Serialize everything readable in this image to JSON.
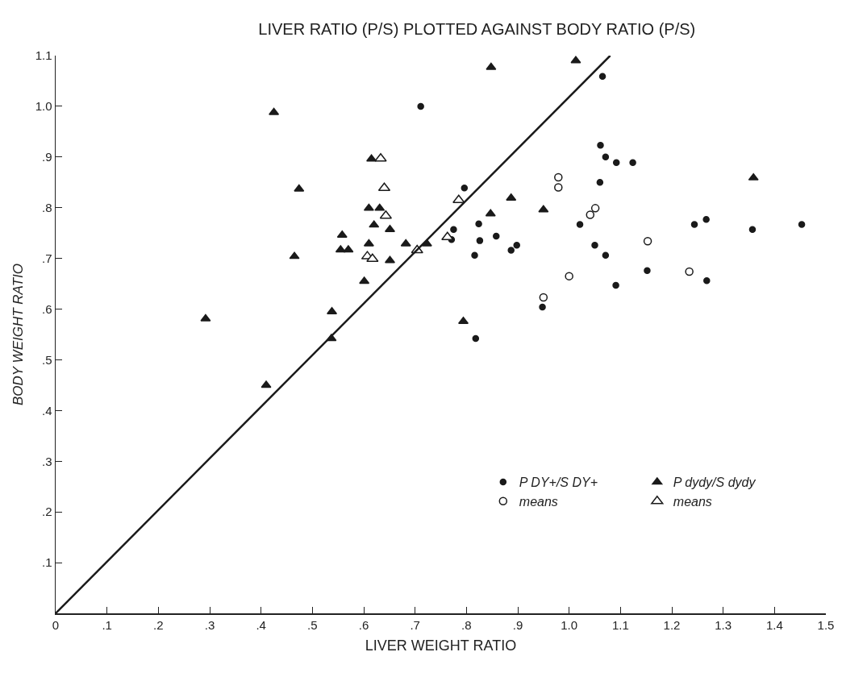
{
  "chart_data": {
    "type": "scatter",
    "title": "LIVER RATIO (P/S) PLOTTED AGAINST BODY RATIO (P/S)",
    "xlabel": "LIVER WEIGHT RATIO",
    "ylabel": "BODY WEIGHT RATIO",
    "xlim": [
      0,
      1.5
    ],
    "xticks": [
      0,
      {
        "value": 0.1,
        "label": ".1"
      },
      {
        "value": 0.2,
        "label": ".2"
      },
      {
        "value": 0.3,
        "label": ".3"
      },
      {
        "value": 0.4,
        "label": ".4"
      },
      {
        "value": 0.5,
        "label": ".5"
      },
      {
        "value": 0.6,
        "label": ".6"
      },
      {
        "value": 0.7,
        "label": ".7"
      },
      {
        "value": 0.8,
        "label": ".8"
      },
      {
        "value": 0.9,
        "label": ".9"
      },
      {
        "value": 1.0,
        "label": "1.0"
      },
      1.1,
      1.2,
      1.3,
      1.4,
      1.5
    ],
    "ylim": [
      0,
      1.1
    ],
    "yticks": [
      {
        "value": 0,
        "label": null
      },
      {
        "value": 0.1,
        "label": ".1"
      },
      {
        "value": 0.2,
        "label": ".2"
      },
      {
        "value": 0.3,
        "label": ".3"
      },
      {
        "value": 0.4,
        "label": ".4"
      },
      {
        "value": 0.5,
        "label": ".5"
      },
      {
        "value": 0.6,
        "label": ".6"
      },
      {
        "value": 0.7,
        "label": ".7"
      },
      {
        "value": 0.8,
        "label": ".8"
      },
      {
        "value": 0.9,
        "label": ".9"
      },
      {
        "value": 1.0,
        "label": "1.0"
      },
      1.1
    ],
    "grid": false,
    "legend": "bottom right",
    "series": [
      {
        "name": "P DY+/S DY+",
        "color": "#1a1a1a",
        "marker": "circle",
        "x": [
          0.711,
          0.796,
          0.775,
          0.771,
          1.065,
          1.061,
          1.071,
          1.092,
          1.124,
          1.06,
          1.021,
          0.824,
          0.858,
          0.826,
          0.816,
          0.887,
          0.898,
          1.05,
          1.071,
          1.244,
          1.267,
          1.357,
          1.453,
          1.152,
          1.268,
          1.091,
          0.948,
          0.818
        ],
        "values": [
          1.0,
          0.839,
          0.757,
          0.737,
          1.059,
          0.923,
          0.9,
          0.889,
          0.889,
          0.85,
          0.767,
          0.768,
          0.744,
          0.735,
          0.706,
          0.716,
          0.726,
          0.726,
          0.706,
          0.767,
          0.777,
          0.757,
          0.767,
          0.676,
          0.656,
          0.647,
          0.604,
          0.542
        ]
      },
      {
        "name": "P dydy/S dydy",
        "color": "#1a1a1a",
        "marker": "triangle",
        "x": [
          0.425,
          0.615,
          0.474,
          0.61,
          0.631,
          0.62,
          0.651,
          0.558,
          0.555,
          0.57,
          0.61,
          0.651,
          0.682,
          0.723,
          0.465,
          0.601,
          0.538,
          0.537,
          0.292,
          0.794,
          0.41,
          0.848,
          1.013,
          0.887,
          0.847,
          0.95,
          1.359
        ],
        "values": [
          0.988,
          0.896,
          0.837,
          0.799,
          0.799,
          0.766,
          0.757,
          0.746,
          0.717,
          0.717,
          0.729,
          0.696,
          0.729,
          0.729,
          0.704,
          0.655,
          0.595,
          0.542,
          0.581,
          0.576,
          0.45,
          1.077,
          1.09,
          0.819,
          0.788,
          0.796,
          0.859
        ]
      },
      {
        "name": "means",
        "color": "#ffffff",
        "marker": "circle",
        "x": [
          0.979,
          0.979,
          1.051,
          1.041,
          1.153,
          1.234,
          1.0,
          0.95
        ],
        "values": [
          0.86,
          0.84,
          0.799,
          0.786,
          0.734,
          0.674,
          0.665,
          0.623
        ]
      },
      {
        "name": "means",
        "color": "#ffffff",
        "marker": "triangle",
        "x": [
          0.633,
          0.64,
          0.785,
          0.643,
          0.763,
          0.607,
          0.617,
          0.704
        ],
        "values": [
          0.897,
          0.839,
          0.815,
          0.784,
          0.742,
          0.704,
          0.699,
          0.716
        ]
      },
      {
        "type": "line",
        "color": "#1a1a1a",
        "line_style": "solid",
        "marker": "none",
        "x": [
          0,
          1.08
        ],
        "values": [
          0,
          1.1
        ]
      }
    ]
  }
}
